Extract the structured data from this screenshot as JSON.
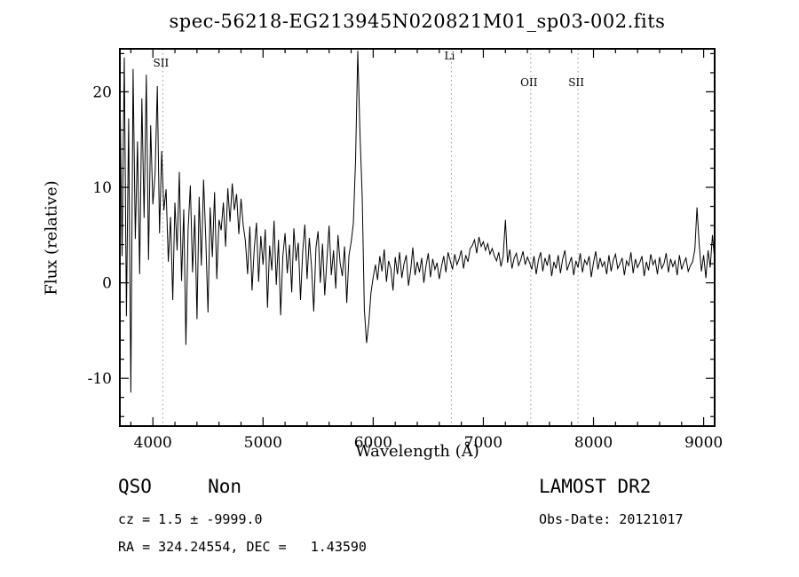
{
  "chart_data": {
    "type": "line",
    "title": "spec-56218-EG213945N020821M01_sp03-002.fits",
    "xlabel": "Wavelength (Å)",
    "ylabel": "Flux (relative)",
    "xlim": [
      3700,
      9100
    ],
    "ylim": [
      -15,
      24.5
    ],
    "xticks": [
      4000,
      5000,
      6000,
      7000,
      8000,
      9000
    ],
    "yticks": [
      -10,
      0,
      10,
      20
    ],
    "x_minor_step": 200,
    "y_minor_step": 2,
    "grid": false,
    "legend": "none",
    "line_color": "#000000",
    "marker_line_color": "#999999",
    "line_markers": [
      {
        "label": "SII",
        "wavelength": 4090,
        "label_dy": 20
      },
      {
        "label": "Li",
        "wavelength": 6710,
        "label_dy": 12
      },
      {
        "label": "OII",
        "wavelength": 7430,
        "label_dy": 42
      },
      {
        "label": "SII",
        "wavelength": 7860,
        "label_dy": 42
      }
    ],
    "series": [
      {
        "name": "spectrum",
        "x_start": 3700,
        "x_step": 20,
        "flux": [
          21.5,
          2.8,
          23.6,
          -3.5,
          17.2,
          -11.5,
          22.4,
          4.6,
          14.8,
          0.9,
          19.3,
          6.8,
          21.8,
          2.4,
          16.5,
          8.2,
          11.4,
          20.6,
          5.2,
          13.8,
          7.6,
          9.8,
          2.2,
          6.9,
          -1.8,
          8.4,
          3.4,
          11.6,
          0.2,
          7.7,
          -6.5,
          5.6,
          10.2,
          1.1,
          7.1,
          -3.8,
          9.0,
          1.8,
          10.8,
          4.6,
          -3.1,
          7.9,
          2.7,
          9.5,
          0.4,
          6.6,
          5.5,
          8.4,
          3.8,
          9.9,
          6.4,
          10.4,
          7.6,
          9.3,
          5.1,
          8.8,
          6.0,
          4.4,
          0.9,
          5.9,
          -0.8,
          3.6,
          6.3,
          0.1,
          4.9,
          1.9,
          5.6,
          -2.6,
          3.9,
          1.3,
          6.5,
          -0.2,
          4.5,
          -3.4,
          2.8,
          5.2,
          1.0,
          4.0,
          -1.0,
          5.7,
          2.3,
          4.2,
          -1.8,
          3.3,
          6.1,
          0.4,
          4.7,
          1.7,
          -3.0,
          3.7,
          5.4,
          0.0,
          4.1,
          -1.3,
          2.5,
          6.0,
          0.8,
          3.4,
          -0.6,
          5.0,
          2.1,
          0.7,
          3.8,
          -2.1,
          2.9,
          4.3,
          6.2,
          12.8,
          24.3,
          15.6,
          9.0,
          -2.8,
          -6.3,
          -4.2,
          -1.0,
          0.6,
          1.9,
          0.3,
          2.8,
          1.2,
          3.5,
          0.1,
          2.3,
          1.5,
          -0.8,
          2.7,
          0.9,
          3.2,
          0.5,
          2.0,
          2.9,
          -0.3,
          1.3,
          3.7,
          0.8,
          2.2,
          1.1,
          2.6,
          0.0,
          1.8,
          3.1,
          0.6,
          2.5,
          1.4,
          2.1,
          0.4,
          1.7,
          2.8,
          1.1,
          3.2,
          2.3,
          1.4,
          3.0,
          1.9,
          2.5,
          3.4,
          1.5,
          2.9,
          2.2,
          3.6,
          3.9,
          4.5,
          3.1,
          4.8,
          3.8,
          4.3,
          3.4,
          4.1,
          3.0,
          3.6,
          2.8,
          2.3,
          3.2,
          1.7,
          2.8,
          6.6,
          2.1,
          3.5,
          1.5,
          2.6,
          3.1,
          1.8,
          2.4,
          3.3,
          1.9,
          2.7,
          2.1,
          1.4,
          2.8,
          0.9,
          2.4,
          3.2,
          1.2,
          2.6,
          1.8,
          3.0,
          0.7,
          2.2,
          1.5,
          2.9,
          1.0,
          2.5,
          3.4,
          1.3,
          2.0,
          2.7,
          0.8,
          2.3,
          1.6,
          3.1,
          1.1,
          2.4,
          1.9,
          2.8,
          0.6,
          2.1,
          3.3,
          1.4,
          2.6,
          1.7,
          2.2,
          0.9,
          2.9,
          1.2,
          2.4,
          3.0,
          1.5,
          2.0,
          2.6,
          0.8,
          2.3,
          1.8,
          3.2,
          1.0,
          2.5,
          1.6,
          2.1,
          2.8,
          0.7,
          2.2,
          1.3,
          3.0,
          1.9,
          2.4,
          0.9,
          2.7,
          1.5,
          2.0,
          3.1,
          1.1,
          2.5,
          1.7,
          2.3,
          0.8,
          2.9,
          1.4,
          2.1,
          2.6,
          1.2,
          1.8,
          2.2,
          3.5,
          7.9,
          4.0,
          1.2,
          2.9,
          0.5,
          3.4,
          1.6,
          5.0,
          2.4
        ]
      }
    ]
  },
  "annotations": {
    "class_line": "QSO     Non",
    "survey": "LAMOST DR2",
    "cz_line": "cz = 1.5 ± -9999.0",
    "obs_date": "Obs-Date: 20121017",
    "radec_line": "RA = 324.24554, DEC =   1.43590"
  }
}
